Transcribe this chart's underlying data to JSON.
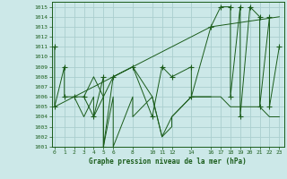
{
  "title": "Graphe pression niveau de la mer (hPa)",
  "bg_color": "#cce8e8",
  "grid_color": "#aacece",
  "line_color": "#1a5c1a",
  "xlim": [
    -0.3,
    23.5
  ],
  "ylim": [
    1001,
    1015.5
  ],
  "xticks": [
    0,
    1,
    2,
    3,
    4,
    5,
    6,
    8,
    10,
    11,
    12,
    14,
    16,
    17,
    18,
    19,
    20,
    21,
    22,
    23
  ],
  "yticks": [
    1001,
    1002,
    1003,
    1004,
    1005,
    1006,
    1007,
    1008,
    1009,
    1010,
    1011,
    1012,
    1013,
    1014,
    1015
  ],
  "series1_x": [
    0,
    0,
    1,
    1,
    2,
    3,
    4,
    5,
    5,
    6,
    8,
    10,
    11,
    12,
    14,
    14,
    16,
    17,
    18,
    18,
    19,
    19,
    20,
    21,
    21,
    22,
    22,
    23
  ],
  "series1_y": [
    1011,
    1005,
    1009,
    1006,
    1006,
    1006,
    1004,
    1008,
    1001,
    1008,
    1009,
    1004,
    1009,
    1008,
    1009,
    1006,
    1013,
    1015,
    1015,
    1006,
    1015,
    1004,
    1015,
    1014,
    1005,
    1014,
    1005,
    1011
  ],
  "series2_x": [
    2,
    3,
    4,
    4,
    5,
    5,
    6,
    6,
    8,
    8,
    10,
    11,
    12,
    12,
    14,
    16,
    17,
    17,
    18,
    19,
    20,
    21,
    22,
    23
  ],
  "series2_y": [
    1006,
    1004,
    1006,
    1004,
    1006,
    1001,
    1006,
    1001,
    1006,
    1004,
    1006,
    1002,
    1003,
    1004,
    1006,
    1006,
    1006,
    1006,
    1005,
    1005,
    1005,
    1005,
    1004,
    1004
  ],
  "series3_x": [
    3,
    4,
    5,
    6,
    8,
    10,
    11,
    12,
    14,
    16
  ],
  "series3_y": [
    1006,
    1008,
    1006,
    1008,
    1009,
    1006,
    1002,
    1004,
    1006,
    1006
  ],
  "trend_x": [
    0,
    16,
    23
  ],
  "trend_y": [
    1005,
    1013,
    1014
  ]
}
